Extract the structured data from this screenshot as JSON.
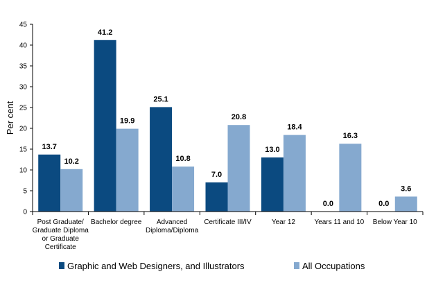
{
  "chart_data": {
    "type": "bar",
    "ylabel": "Per cent",
    "xlabel": "",
    "ylim": [
      0,
      45
    ],
    "yticks": [
      0,
      5,
      10,
      15,
      20,
      25,
      30,
      35,
      40,
      45
    ],
    "categories": [
      [
        "Post Graduate/",
        "Graduate Diploma",
        "or Graduate",
        "Certificate"
      ],
      [
        "Bachelor degree"
      ],
      [
        "Advanced",
        "Diploma/Diploma"
      ],
      [
        "Certificate III/IV"
      ],
      [
        "Year 12"
      ],
      [
        "Years 11 and 10"
      ],
      [
        "Below Year 10"
      ]
    ],
    "series": [
      {
        "name": "Graphic and Web Designers, and Illustrators",
        "color": "#0b4a80",
        "values": [
          13.7,
          41.2,
          25.1,
          7.0,
          13.0,
          0.0,
          0.0
        ],
        "labels": [
          "13.7",
          "41.2",
          "25.1",
          "7.0",
          "13.0",
          "0.0",
          "0.0"
        ]
      },
      {
        "name": "All Occupations",
        "color": "#85a9cf",
        "values": [
          10.2,
          19.9,
          10.8,
          20.8,
          18.4,
          16.3,
          3.6
        ],
        "labels": [
          "10.2",
          "19.9",
          "10.8",
          "20.8",
          "18.4",
          "16.3",
          "3.6"
        ]
      }
    ],
    "legend_position": "bottom",
    "grid": false
  }
}
